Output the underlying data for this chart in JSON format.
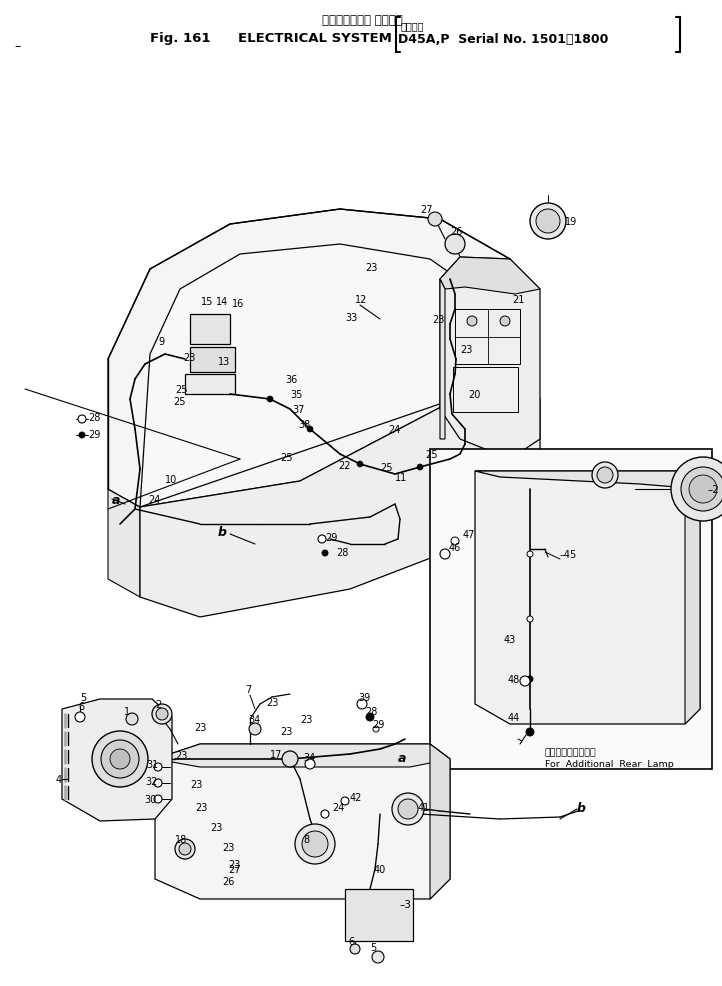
{
  "title_japanese": "エレクトリカル システム",
  "title_english": "ELECTRICAL SYSTEM",
  "fig_number": "Fig. 161",
  "serial_japanese": "適用号機",
  "serial_english": "D45A,P  Serial No. 1501～1800",
  "inset_jp": "増設リヤーランプ用",
  "inset_en": "For  Additional  Rear  Lamp",
  "bg": "#ffffff",
  "lc": "#000000",
  "figsize": [
    7.22,
    9.87
  ],
  "dpi": 100
}
